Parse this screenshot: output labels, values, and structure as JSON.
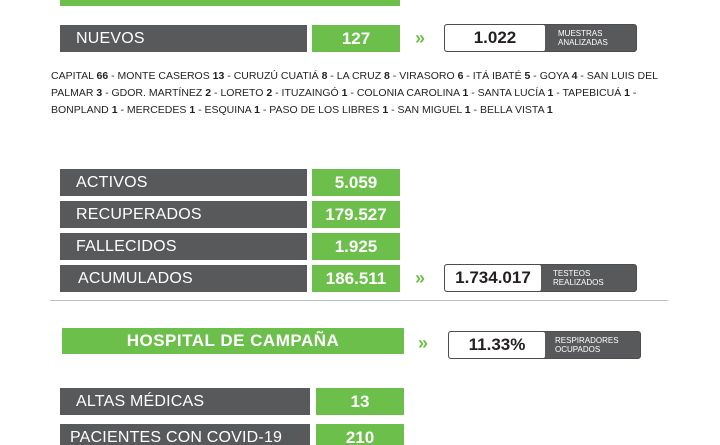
{
  "nuevos": {
    "label": "NUEVOS",
    "value": "127"
  },
  "muestras": {
    "value": "1.022",
    "caption_line1": "MUESTRAS",
    "caption_line2": "ANALIZADAS"
  },
  "arrows": "»",
  "localidades": [
    {
      "name": "CAPITAL",
      "count": "66"
    },
    {
      "name": "MONTE CASEROS",
      "count": "13"
    },
    {
      "name": "CURUZÚ CUATIÁ",
      "count": "8"
    },
    {
      "name": "LA CRUZ",
      "count": "8"
    },
    {
      "name": "VIRASORO",
      "count": "6"
    },
    {
      "name": "ITÁ IBATÉ",
      "count": "5"
    },
    {
      "name": "GOYA",
      "count": "4"
    },
    {
      "name": "SAN LUIS DEL PALMAR",
      "count": "3"
    },
    {
      "name": "GDOR. MARTÍNEZ",
      "count": "2"
    },
    {
      "name": "LORETO",
      "count": "2"
    },
    {
      "name": "ITUZAINGÓ",
      "count": "1"
    },
    {
      "name": "COLONIA CAROLINA",
      "count": "1"
    },
    {
      "name": "SANTA LUCÍA",
      "count": "1"
    },
    {
      "name": "TAPEBICUÁ",
      "count": "1"
    },
    {
      "name": "BONPLAND",
      "count": "1"
    },
    {
      "name": "MERCEDES",
      "count": "1"
    },
    {
      "name": "ESQUINA",
      "count": "1"
    },
    {
      "name": "PASO DE LOS LIBRES",
      "count": "1"
    },
    {
      "name": "SAN MIGUEL",
      "count": "1"
    },
    {
      "name": "BELLA VISTA",
      "count": "1"
    }
  ],
  "totales": {
    "activos": {
      "label": "ACTIVOS",
      "value": "5.059"
    },
    "recuperados": {
      "label": "RECUPERADOS",
      "value": "179.527"
    },
    "fallecidos": {
      "label": "FALLECIDOS",
      "value": "1.925"
    },
    "acumulados": {
      "label": "ACUMULADOS",
      "value": "186.511"
    }
  },
  "testeos": {
    "value": "1.734.017",
    "caption_line1": "TESTEOS",
    "caption_line2": "REALIZADOS"
  },
  "hospital": {
    "title": "HOSPITAL DE CAMPAÑA"
  },
  "respiradores": {
    "value": "11.33%",
    "caption_line1": "RESPIRADORES",
    "caption_line2": "OCUPADOS"
  },
  "altas": {
    "label": "ALTAS MÉDICAS",
    "value": "13"
  },
  "pacientes": {
    "label": "PACIENTES CON COVID-19",
    "value": "210"
  },
  "colors": {
    "green": "#6cbf4a",
    "gray": "#58595b"
  }
}
